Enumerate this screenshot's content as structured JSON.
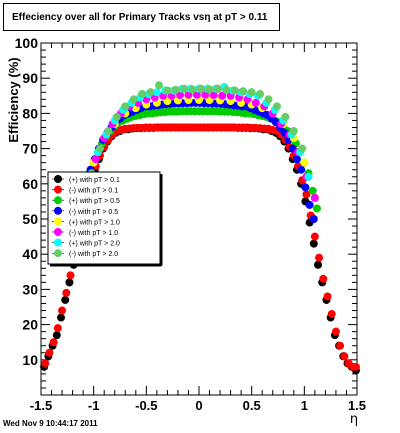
{
  "chart_data": {
    "type": "scatter",
    "title": "Effeciency over all for Primary Tracks vsη at pT > 0.11",
    "xlabel": "η",
    "ylabel": "Efficiency (%)",
    "xlim": [
      -1.5,
      1.5
    ],
    "ylim": [
      0,
      100
    ],
    "x_ticks": [
      "-1.5",
      "-1",
      "-0.5",
      "0",
      "0.5",
      "1",
      "1.5"
    ],
    "y_ticks": [
      "10",
      "20",
      "30",
      "40",
      "50",
      "60",
      "70",
      "80",
      "90",
      "100"
    ],
    "grid": false,
    "legend_position": "middle-left",
    "series": [
      {
        "name": "(+) with pT > 0.1",
        "color": "#000000",
        "x": [
          -1.47,
          -1.43,
          -1.39,
          -1.35,
          -1.31,
          -1.27,
          -1.23,
          -1.19,
          -1.15,
          -1.11,
          -1.07,
          -1.03,
          -0.99,
          -0.95,
          -0.91,
          -0.87,
          -0.83,
          -0.79,
          -0.75,
          -0.71,
          -0.67,
          -0.63,
          -0.59,
          -0.55,
          -0.51,
          -0.47,
          -0.43,
          -0.39,
          -0.35,
          -0.31,
          -0.27,
          -0.23,
          -0.19,
          -0.15,
          -0.11,
          -0.07,
          -0.03,
          0.01,
          0.05,
          0.09,
          0.13,
          0.17,
          0.21,
          0.25,
          0.29,
          0.33,
          0.37,
          0.41,
          0.45,
          0.49,
          0.53,
          0.57,
          0.61,
          0.65,
          0.69,
          0.73,
          0.77,
          0.81,
          0.85,
          0.89,
          0.93,
          0.97,
          1.01,
          1.05,
          1.09,
          1.13,
          1.17,
          1.21,
          1.25,
          1.29,
          1.33,
          1.37,
          1.41,
          1.45,
          1.49
        ],
        "y": [
          8,
          11,
          14,
          17,
          22,
          27,
          32,
          37,
          43,
          49,
          55,
          60,
          64,
          67,
          70,
          72,
          73.5,
          74.5,
          75,
          75.5,
          75.5,
          75.7,
          75.8,
          75.8,
          75.9,
          75.9,
          75.9,
          76,
          76,
          76,
          76,
          76,
          76,
          76,
          76,
          76,
          76,
          76,
          76,
          76,
          76,
          76,
          76,
          76,
          76,
          76,
          75.9,
          75.9,
          75.9,
          75.8,
          75.8,
          75.7,
          75.5,
          75.5,
          75,
          74.5,
          73.5,
          72,
          70,
          67,
          64,
          60,
          55,
          49,
          43,
          37,
          32,
          27,
          22,
          17,
          14,
          11,
          9,
          8,
          7
        ]
      },
      {
        "name": "(-) with pT > 0.1",
        "color": "#ff0000",
        "x": [
          -1.46,
          -1.42,
          -1.38,
          -1.34,
          -1.3,
          -1.26,
          -1.22,
          -1.18,
          -1.14,
          -1.1,
          -1.06,
          -1.02,
          -0.98,
          -0.94,
          -0.9,
          -0.86,
          -0.82,
          -0.78,
          -0.74,
          -0.7,
          -0.66,
          -0.62,
          -0.58,
          -0.54,
          -0.5,
          -0.46,
          -0.42,
          -0.38,
          -0.34,
          -0.3,
          -0.26,
          -0.22,
          -0.18,
          -0.14,
          -0.1,
          -0.06,
          -0.02,
          0.02,
          0.06,
          0.1,
          0.14,
          0.18,
          0.22,
          0.26,
          0.3,
          0.34,
          0.38,
          0.42,
          0.46,
          0.5,
          0.54,
          0.58,
          0.62,
          0.66,
          0.7,
          0.74,
          0.78,
          0.82,
          0.86,
          0.9,
          0.94,
          0.98,
          1.02,
          1.06,
          1.1,
          1.14,
          1.18,
          1.22,
          1.26,
          1.3,
          1.34,
          1.38,
          1.42,
          1.46,
          1.49
        ],
        "y": [
          9,
          12,
          15,
          19,
          24,
          29,
          34,
          39,
          45,
          51,
          57,
          61,
          65,
          68,
          70.5,
          72.5,
          74,
          75,
          75.3,
          75.6,
          75.7,
          75.8,
          75.9,
          75.9,
          76,
          76,
          76,
          76,
          76,
          76,
          76,
          76,
          76,
          76,
          76,
          76,
          76,
          76,
          76,
          76,
          76,
          76,
          76,
          76,
          76,
          76,
          76,
          76,
          76,
          75.9,
          75.9,
          75.8,
          75.7,
          75.6,
          75.3,
          75,
          74,
          72.5,
          70.5,
          68,
          65,
          61,
          57,
          51,
          45,
          39,
          33,
          28,
          23,
          18,
          14,
          11,
          9,
          8,
          8
        ]
      },
      {
        "name": "(+) with pT > 0.5",
        "color": "#00cc00",
        "x": [
          -1.12,
          -1.08,
          -1.04,
          -1.0,
          -0.96,
          -0.92,
          -0.88,
          -0.84,
          -0.8,
          -0.76,
          -0.72,
          -0.68,
          -0.64,
          -0.6,
          -0.56,
          -0.52,
          -0.48,
          -0.44,
          -0.4,
          -0.36,
          -0.32,
          -0.28,
          -0.24,
          -0.2,
          -0.16,
          -0.12,
          -0.08,
          -0.04,
          0.0,
          0.04,
          0.08,
          0.12,
          0.16,
          0.2,
          0.24,
          0.28,
          0.32,
          0.36,
          0.4,
          0.44,
          0.48,
          0.52,
          0.56,
          0.6,
          0.64,
          0.68,
          0.72,
          0.76,
          0.8,
          0.84,
          0.88,
          0.92,
          0.96,
          1.0,
          1.04,
          1.08,
          1.12
        ],
        "y": [
          53,
          58,
          63,
          66,
          69,
          71.5,
          73.5,
          75,
          76.5,
          77.5,
          78,
          78.5,
          79,
          79.3,
          79.5,
          79.8,
          80,
          80,
          80.2,
          80.3,
          80.4,
          80.5,
          80.5,
          80.5,
          80.6,
          80.6,
          80.6,
          80.6,
          80.6,
          80.6,
          80.6,
          80.6,
          80.6,
          80.5,
          80.5,
          80.5,
          80.4,
          80.3,
          80.2,
          80,
          80,
          79.8,
          79.5,
          79.3,
          79,
          78.5,
          78,
          77.5,
          76.5,
          75,
          73.5,
          71.5,
          69,
          66,
          63,
          58,
          53
        ]
      },
      {
        "name": "(-) with pT > 0.5",
        "color": "#0000ff",
        "x": [
          -1.11,
          -1.07,
          -1.03,
          -0.99,
          -0.95,
          -0.91,
          -0.87,
          -0.83,
          -0.79,
          -0.75,
          -0.71,
          -0.67,
          -0.63,
          -0.59,
          -0.55,
          -0.51,
          -0.47,
          -0.43,
          -0.39,
          -0.35,
          -0.31,
          -0.27,
          -0.23,
          -0.19,
          -0.15,
          -0.11,
          -0.07,
          -0.03,
          0.01,
          0.05,
          0.09,
          0.13,
          0.17,
          0.21,
          0.25,
          0.29,
          0.33,
          0.37,
          0.41,
          0.45,
          0.49,
          0.53,
          0.57,
          0.61,
          0.65,
          0.69,
          0.73,
          0.77,
          0.81,
          0.85,
          0.89,
          0.93,
          0.97,
          1.01,
          1.05,
          1.09
        ],
        "y": [
          54,
          59,
          64,
          67,
          70,
          72.5,
          74.5,
          76,
          77.5,
          78.5,
          79.5,
          80,
          80.5,
          81,
          81.5,
          82,
          82,
          82.2,
          82.3,
          82.5,
          82.6,
          82.7,
          82.8,
          82.8,
          82.9,
          82.9,
          83,
          83,
          83,
          82.9,
          82.9,
          82.8,
          82.8,
          82.7,
          82.6,
          82.5,
          82.3,
          82.2,
          82,
          82,
          81.5,
          81,
          80.5,
          80,
          79.5,
          78.5,
          77.5,
          76,
          74.5,
          72.5,
          70,
          67,
          64,
          59,
          54,
          50
        ]
      },
      {
        "name": "(+) with pT > 1.0",
        "color": "#ffff00",
        "x": [
          -1.1,
          -1.0,
          -0.9,
          -0.8,
          -0.7,
          -0.6,
          -0.5,
          -0.4,
          -0.3,
          -0.2,
          -0.1,
          0.0,
          0.1,
          0.2,
          0.3,
          0.4,
          0.5,
          0.6,
          0.7,
          0.8,
          0.9,
          1.0,
          1.1
        ],
        "y": [
          56,
          66,
          73,
          77,
          80,
          81.5,
          82.5,
          83,
          83.5,
          83.7,
          83.8,
          83.8,
          83.8,
          83.7,
          83.5,
          83,
          82.5,
          81.5,
          80,
          77,
          73,
          66,
          56
        ]
      },
      {
        "name": "(-) with pT > 1.0",
        "color": "#ff00ff",
        "x": [
          -1.06,
          -0.98,
          -0.9,
          -0.82,
          -0.74,
          -0.66,
          -0.58,
          -0.5,
          -0.42,
          -0.34,
          -0.26,
          -0.18,
          -0.1,
          -0.02,
          0.06,
          0.14,
          0.22,
          0.3,
          0.38,
          0.46,
          0.54,
          0.62,
          0.7,
          0.78,
          0.86,
          0.94,
          1.02,
          1.1
        ],
        "y": [
          60,
          67,
          73,
          77,
          80,
          82,
          83,
          84,
          84.5,
          85,
          85,
          85.2,
          85.3,
          85.3,
          85.3,
          85.2,
          85,
          85,
          84.5,
          84,
          83,
          82,
          80,
          77,
          74,
          69,
          62,
          56
        ]
      },
      {
        "name": "(+) with pT > 2.0",
        "color": "#00ffff",
        "x": [
          -1.04,
          -0.96,
          -0.88,
          -0.8,
          -0.72,
          -0.64,
          -0.56,
          -0.48,
          -0.4,
          -0.32,
          -0.24,
          -0.16,
          -0.08,
          0.0,
          0.08,
          0.16,
          0.24,
          0.32,
          0.4,
          0.48,
          0.56,
          0.64,
          0.72,
          0.8,
          0.88,
          0.96,
          1.04
        ],
        "y": [
          62,
          69,
          74,
          78,
          81,
          83,
          84.5,
          85.5,
          86,
          86.5,
          86.5,
          87,
          87,
          87,
          87,
          87,
          87.5,
          86.5,
          86,
          85.5,
          85,
          83,
          81,
          78,
          74,
          69,
          62
        ]
      },
      {
        "name": "(-) with pT > 2.0",
        "color": "#66cc66",
        "x": [
          -1.02,
          -0.94,
          -0.86,
          -0.78,
          -0.7,
          -0.62,
          -0.54,
          -0.46,
          -0.38,
          -0.3,
          -0.22,
          -0.14,
          -0.06,
          0.02,
          0.1,
          0.18,
          0.26,
          0.34,
          0.42,
          0.5,
          0.58,
          0.66,
          0.74,
          0.82,
          0.9,
          0.98
        ],
        "y": [
          63,
          70,
          75,
          79,
          82,
          84,
          85.5,
          86,
          88,
          86.5,
          86.7,
          87,
          86.8,
          87,
          86.8,
          87,
          86.7,
          86.5,
          86.3,
          86,
          85.5,
          84,
          82,
          79,
          75,
          70
        ]
      }
    ]
  },
  "footer": {
    "timestamp": "Wed Nov  9 10:44:17 2011"
  }
}
